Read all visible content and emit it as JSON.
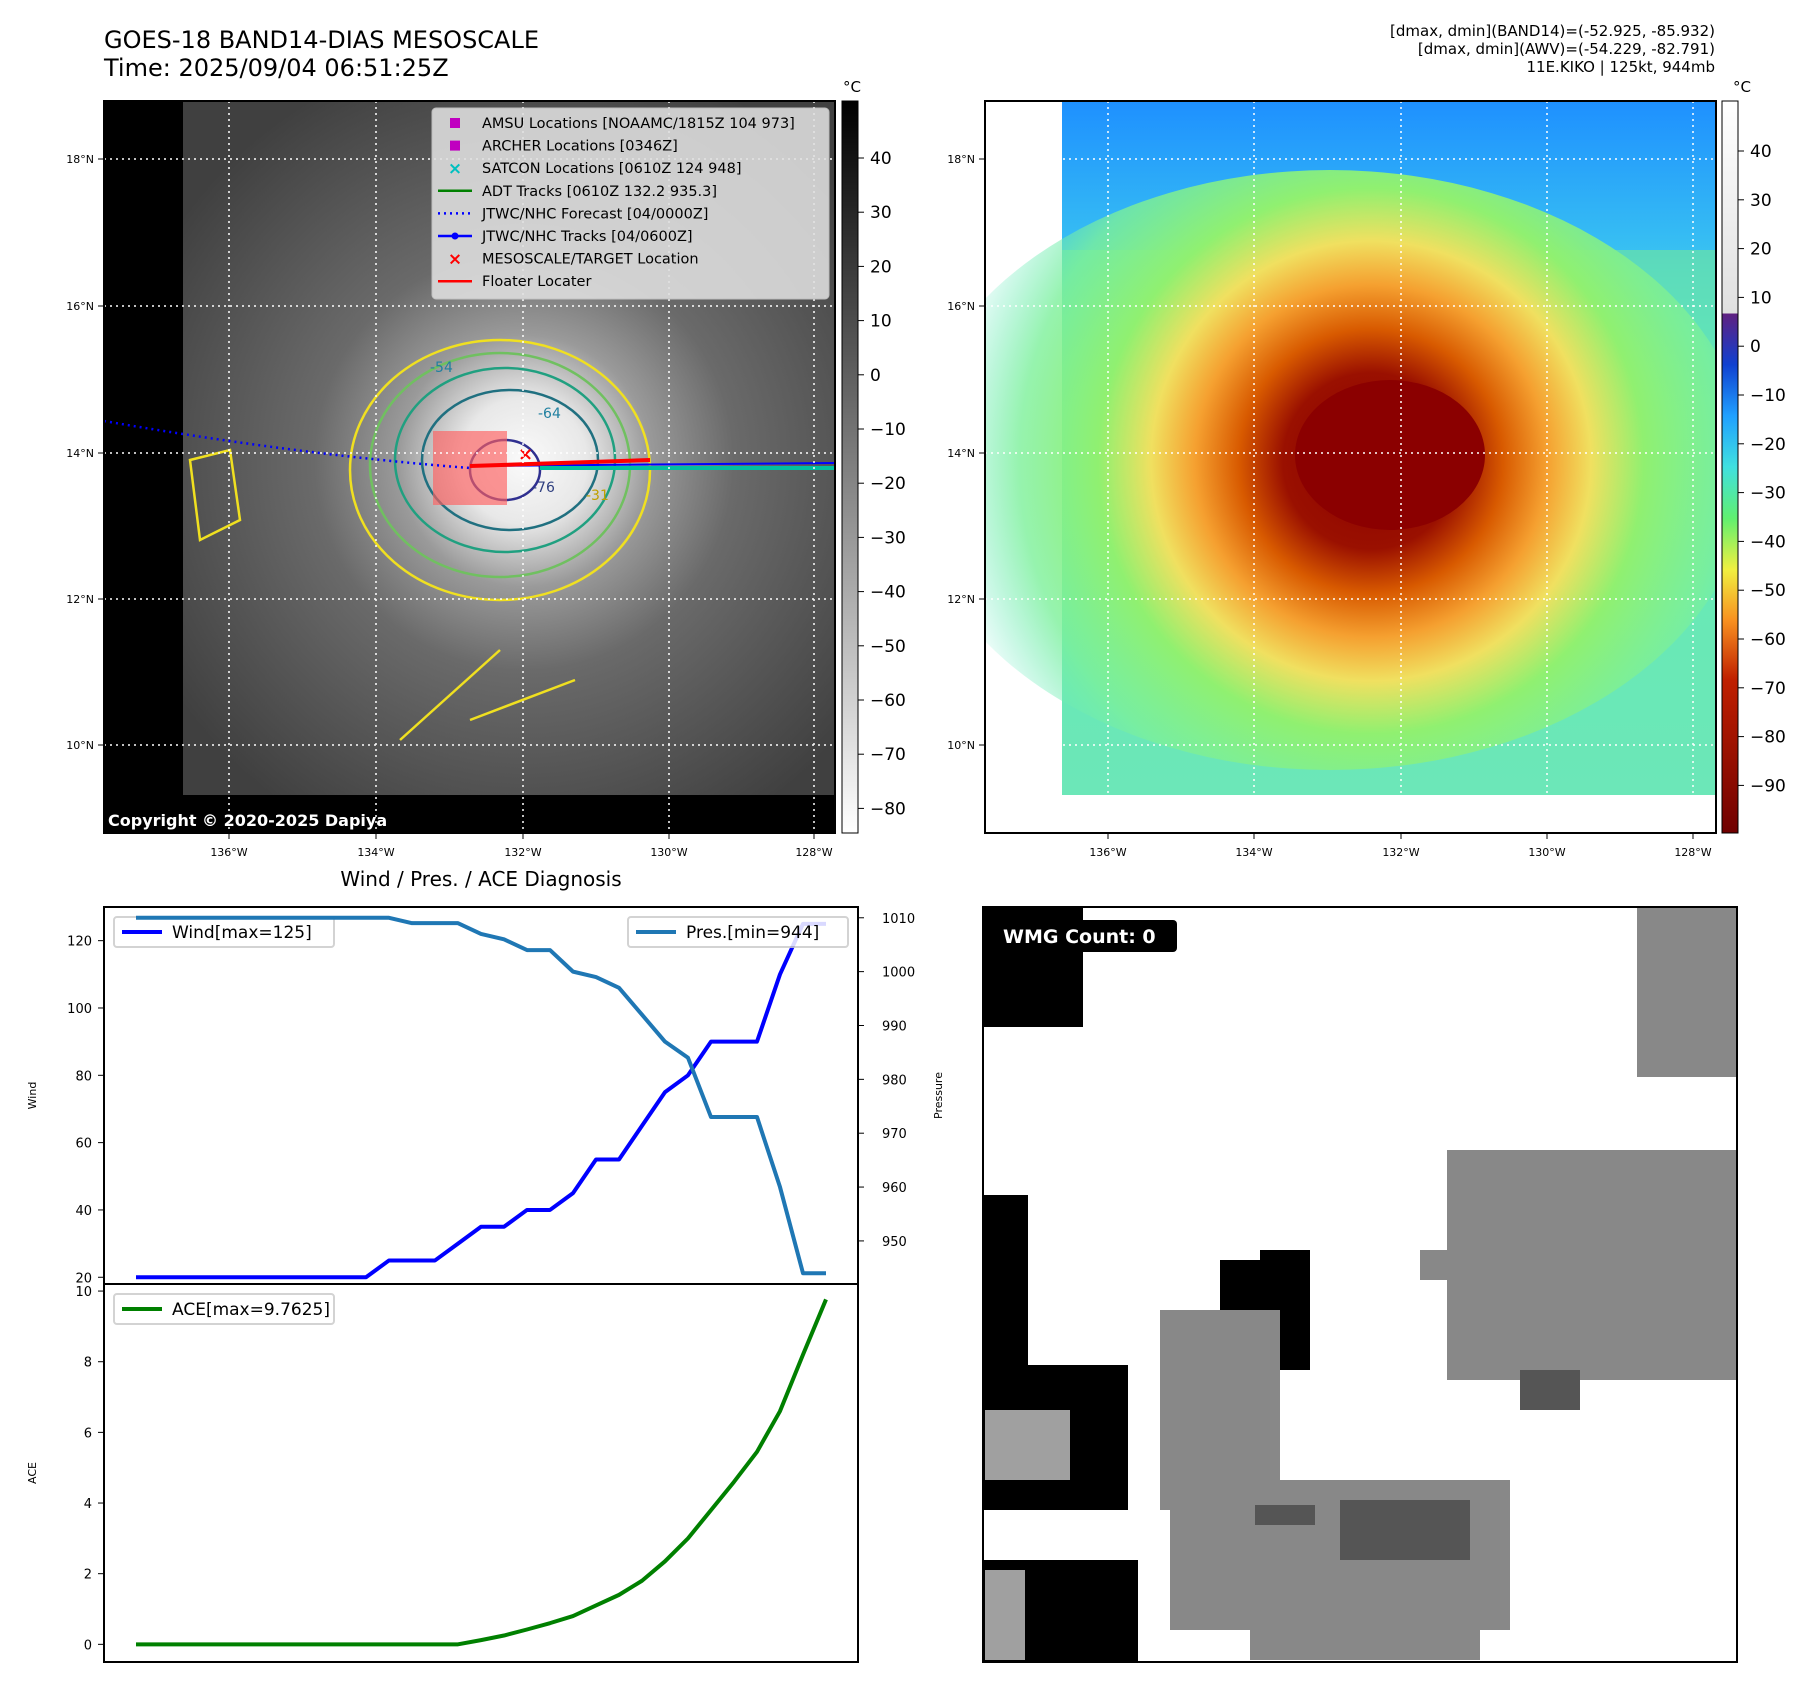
{
  "header": {
    "title": "GOES-18 BAND14-DIAS MESOSCALE",
    "time": "Time: 2025/09/04 06:51:25Z",
    "info_band14": "[dmax, dmin](BAND14)=(-52.925, -85.932)",
    "info_awv": "[dmax, dmin](AWV)=(-54.229, -82.791)",
    "info_storm": "11E.KIKO | 125kt, 944mb"
  },
  "map": {
    "lat_ticks": [
      "18°N",
      "16°N",
      "14°N",
      "12°N",
      "10°N"
    ],
    "lon_ticks": [
      "136°W",
      "134°W",
      "132°W",
      "130°W",
      "128°W"
    ],
    "copyright": "Copyright © 2020-2025 Dapiya",
    "contour_labels": [
      "-54",
      "-64",
      "-76",
      "-31"
    ],
    "legend": [
      {
        "label": "AMSU Locations [NOAAMC/1815Z 104 973]",
        "marker": "square",
        "color": "#c000c0"
      },
      {
        "label": "ARCHER Locations [0346Z]",
        "marker": "square",
        "color": "#c000c0"
      },
      {
        "label": "SATCON Locations [0610Z 124 948]",
        "marker": "x",
        "color": "#00c0c0"
      },
      {
        "label": "ADT Tracks [0610Z 132.2 935.3]",
        "marker": "line",
        "color": "#008000"
      },
      {
        "label": "JTWC/NHC Forecast [04/0000Z]",
        "marker": "dotted",
        "color": "#0000ff"
      },
      {
        "label": "JTWC/NHC Tracks [04/0600Z]",
        "marker": "line-dot",
        "color": "#0000ff"
      },
      {
        "label": "MESOSCALE/TARGET Location",
        "marker": "x",
        "color": "#ff0000"
      },
      {
        "label": "Floater Locater",
        "marker": "line",
        "color": "#ff0000"
      }
    ]
  },
  "colorbar_gray": {
    "unit": "°C",
    "ticks": [
      "40",
      "30",
      "20",
      "10",
      "0",
      "−10",
      "−20",
      "−30",
      "−40",
      "−50",
      "−60",
      "−70",
      "−80"
    ]
  },
  "colorbar_color": {
    "unit": "°C",
    "ticks": [
      "40",
      "30",
      "20",
      "10",
      "0",
      "−10",
      "−20",
      "−30",
      "−40",
      "−50",
      "−60",
      "−70",
      "−80",
      "−90"
    ]
  },
  "wmg": {
    "badge": "WMG Count: 0"
  },
  "chart_data": [
    {
      "type": "line",
      "title": "Wind / Pres. / ACE Diagnosis",
      "ylabel": "Wind",
      "y2label": "Pressure",
      "ylim": [
        18,
        130
      ],
      "y2lim": [
        942,
        1012
      ],
      "yticks": [
        "20",
        "40",
        "60",
        "80",
        "100",
        "120"
      ],
      "y2ticks": [
        "950",
        "960",
        "970",
        "980",
        "990",
        "1000",
        "1010"
      ],
      "series": [
        {
          "name": "Wind[max=125]",
          "color": "#0000ff",
          "axis": "left",
          "values": [
            20,
            20,
            20,
            20,
            20,
            20,
            20,
            20,
            20,
            20,
            20,
            25,
            25,
            25,
            30,
            35,
            35,
            40,
            40,
            45,
            55,
            55,
            65,
            75,
            80,
            90,
            90,
            90,
            110,
            125,
            125
          ]
        },
        {
          "name": "Pres.[min=944]",
          "color": "#1f77b4",
          "axis": "right",
          "values": [
            1010,
            1010,
            1010,
            1010,
            1010,
            1010,
            1010,
            1010,
            1010,
            1010,
            1010,
            1010,
            1009,
            1009,
            1009,
            1007,
            1006,
            1004,
            1004,
            1000,
            999,
            997,
            992,
            987,
            984,
            973,
            973,
            973,
            960,
            944,
            944
          ]
        }
      ]
    },
    {
      "type": "line",
      "ylabel": "ACE",
      "ylim": [
        -0.5,
        10.2
      ],
      "yticks": [
        "0",
        "2",
        "4",
        "6",
        "8",
        "10"
      ],
      "series": [
        {
          "name": "ACE[max=9.7625]",
          "color": "#008000",
          "values": [
            0,
            0,
            0,
            0,
            0,
            0,
            0,
            0,
            0,
            0,
            0,
            0,
            0,
            0,
            0,
            0.12,
            0.25,
            0.42,
            0.6,
            0.8,
            1.1,
            1.4,
            1.8,
            2.35,
            3.0,
            3.8,
            4.6,
            5.45,
            6.6,
            8.2,
            9.7625
          ]
        }
      ]
    }
  ]
}
